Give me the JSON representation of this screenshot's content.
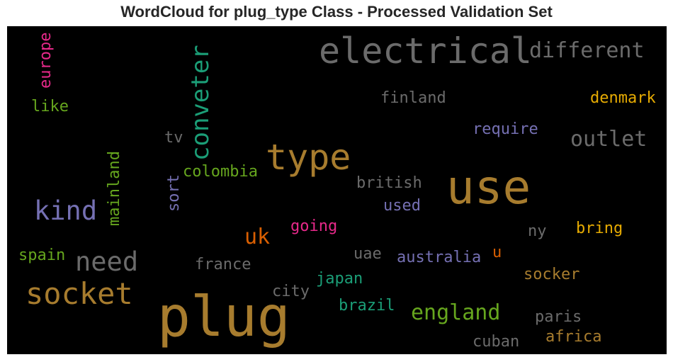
{
  "title": "WordCloud for plug_type Class - Processed Validation Set",
  "palette": {
    "brown": "#a77c2e",
    "gray": "#6b6b6b",
    "teal": "#1b9e77",
    "purple": "#7570b3",
    "green": "#66a61e",
    "pink": "#e7298a",
    "gold": "#e6ab02",
    "orange": "#d95f02"
  },
  "words": [
    {
      "text": "plug",
      "color": "#a77c2e"
    },
    {
      "text": "use",
      "color": "#a77c2e"
    },
    {
      "text": "electrical",
      "color": "#6b6b6b"
    },
    {
      "text": "type",
      "color": "#a77c2e"
    },
    {
      "text": "socket",
      "color": "#a77c2e"
    },
    {
      "text": "conveter",
      "color": "#1b9e77"
    },
    {
      "text": "kind",
      "color": "#7570b3"
    },
    {
      "text": "need",
      "color": "#6b6b6b"
    },
    {
      "text": "different",
      "color": "#6b6b6b"
    },
    {
      "text": "outlet",
      "color": "#6b6b6b"
    },
    {
      "text": "england",
      "color": "#66a61e"
    },
    {
      "text": "uk",
      "color": "#d95f02"
    },
    {
      "text": "europe",
      "color": "#e7298a"
    },
    {
      "text": "mainland",
      "color": "#66a61e"
    },
    {
      "text": "finland",
      "color": "#6b6b6b"
    },
    {
      "text": "denmark",
      "color": "#e6ab02"
    },
    {
      "text": "require",
      "color": "#7570b3"
    },
    {
      "text": "like",
      "color": "#66a61e"
    },
    {
      "text": "tv",
      "color": "#6b6b6b"
    },
    {
      "text": "colombia",
      "color": "#66a61e"
    },
    {
      "text": "sort",
      "color": "#7570b3"
    },
    {
      "text": "british",
      "color": "#6b6b6b"
    },
    {
      "text": "used",
      "color": "#7570b3"
    },
    {
      "text": "going",
      "color": "#e7298a"
    },
    {
      "text": "bring",
      "color": "#e6ab02"
    },
    {
      "text": "ny",
      "color": "#6b6b6b"
    },
    {
      "text": "spain",
      "color": "#66a61e"
    },
    {
      "text": "uae",
      "color": "#6b6b6b"
    },
    {
      "text": "australia",
      "color": "#7570b3"
    },
    {
      "text": "u",
      "color": "#d95f02"
    },
    {
      "text": "france",
      "color": "#6b6b6b"
    },
    {
      "text": "socker",
      "color": "#a77c2e"
    },
    {
      "text": "japan",
      "color": "#1b9e77"
    },
    {
      "text": "city",
      "color": "#6b6b6b"
    },
    {
      "text": "brazil",
      "color": "#1b9e77"
    },
    {
      "text": "paris",
      "color": "#6b6b6b"
    },
    {
      "text": "africa",
      "color": "#a77c2e"
    },
    {
      "text": "cuban",
      "color": "#6b6b6b"
    }
  ]
}
